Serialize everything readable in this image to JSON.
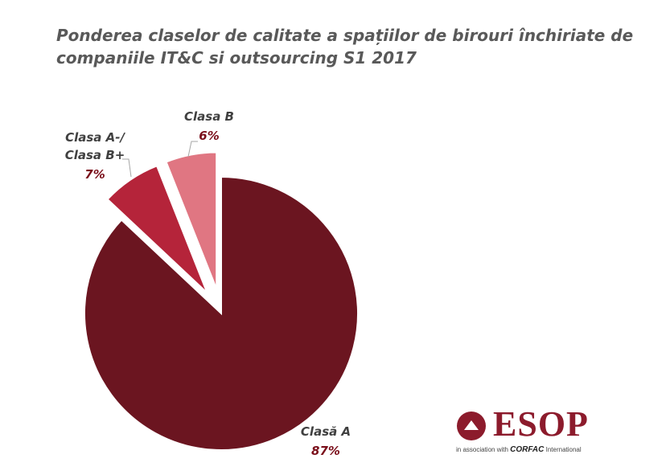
{
  "chart_data": {
    "type": "pie",
    "title": "Ponderea claselor de calitate a spațiilor de birouri închiriate de companiile IT&C si outsourcing  S1 2017",
    "slices": [
      {
        "name_lines": [
          "Clasă A"
        ],
        "value": 87,
        "label": "87%",
        "color": "#6b1520",
        "exploded": false
      },
      {
        "name_lines": [
          "Clasa A-/",
          "Clasa B+"
        ],
        "value": 7,
        "label": "7%",
        "color": "#b5243a",
        "exploded": true
      },
      {
        "name_lines": [
          "Clasa B"
        ],
        "value": 6,
        "label": "6%",
        "color": "#e07682",
        "exploded": true
      }
    ],
    "label_color": "#404040",
    "value_color": "#7a0e1a"
  },
  "logo": {
    "name": "ESOP",
    "tagline_pre": "in association with",
    "tagline_brand": "CORFAC",
    "tagline_post": "International"
  }
}
